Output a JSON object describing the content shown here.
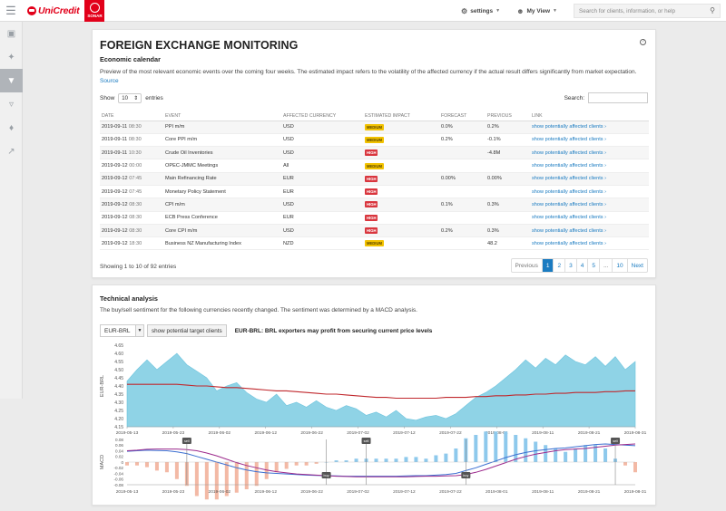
{
  "topbar": {
    "brand": "UniCredit",
    "product": "SONAR",
    "settings_label": "settings",
    "myview_label": "My View",
    "search_placeholder": "Search for clients, information, or help"
  },
  "sidebar": {
    "items": [
      {
        "icon": "monitor-icon"
      },
      {
        "icon": "pin-icon"
      },
      {
        "icon": "funnel-icon",
        "active": true
      },
      {
        "icon": "filter-icon"
      },
      {
        "icon": "bell-icon"
      },
      {
        "icon": "trend-icon"
      }
    ]
  },
  "fx_panel": {
    "title": "FOREIGN EXCHANGE MONITORING",
    "help": "?",
    "subtitle": "Economic calendar",
    "description": "Preview of the most relevant economic events over the coming four weeks. The estimated impact refers to the volatility of the affected currency if the actual result differs significantly from market expectation.",
    "source_link": "Source",
    "show_label": "Show",
    "entries_value": "10",
    "entries_label": "entries",
    "search_label": "Search:",
    "columns": [
      "DATE",
      "EVENT",
      "AFFECTED CURRENCY",
      "ESTIMATED IMPACT",
      "FORECAST",
      "PREVIOUS",
      "LINK"
    ],
    "rows": [
      {
        "date": "2019-09-11",
        "time": "08:30",
        "event": "PPI m/m",
        "currency": "USD",
        "impact": "MEDIUM",
        "forecast": "0.0%",
        "previous": "0.2%",
        "link": "show potentially affected clients"
      },
      {
        "date": "2019-09-11",
        "time": "08:30",
        "event": "Core PPI m/m",
        "currency": "USD",
        "impact": "MEDIUM",
        "forecast": "0.2%",
        "previous": "-0.1%",
        "link": "show potentially affected clients"
      },
      {
        "date": "2019-09-11",
        "time": "10:30",
        "event": "Crude Oil Inventories",
        "currency": "USD",
        "impact": "HIGH",
        "forecast": "",
        "previous": "-4.8M",
        "link": "show potentially affected clients"
      },
      {
        "date": "2019-09-12",
        "time": "00:00",
        "event": "OPEC-JMMC Meetings",
        "currency": "All",
        "impact": "MEDIUM",
        "forecast": "",
        "previous": "",
        "link": "show potentially affected clients"
      },
      {
        "date": "2019-09-12",
        "time": "07:45",
        "event": "Main Refinancing Rate",
        "currency": "EUR",
        "impact": "HIGH",
        "forecast": "0.00%",
        "previous": "0.00%",
        "link": "show potentially affected clients"
      },
      {
        "date": "2019-09-12",
        "time": "07:45",
        "event": "Monetary Policy Statement",
        "currency": "EUR",
        "impact": "HIGH",
        "forecast": "",
        "previous": "",
        "link": "show potentially affected clients"
      },
      {
        "date": "2019-09-12",
        "time": "08:30",
        "event": "CPI m/m",
        "currency": "USD",
        "impact": "HIGH",
        "forecast": "0.1%",
        "previous": "0.3%",
        "link": "show potentially affected clients"
      },
      {
        "date": "2019-09-12",
        "time": "08:30",
        "event": "ECB Press Conference",
        "currency": "EUR",
        "impact": "HIGH",
        "forecast": "",
        "previous": "",
        "link": "show potentially affected clients"
      },
      {
        "date": "2019-09-12",
        "time": "08:30",
        "event": "Core CPI m/m",
        "currency": "USD",
        "impact": "HIGH",
        "forecast": "0.2%",
        "previous": "0.3%",
        "link": "show potentially affected clients"
      },
      {
        "date": "2019-09-12",
        "time": "18:30",
        "event": "Business NZ Manufacturing Index",
        "currency": "NZD",
        "impact": "MEDIUM",
        "forecast": "",
        "previous": "48.2",
        "link": "show potentially affected clients"
      }
    ],
    "info": "Showing 1 to 10 of 92 entries",
    "pagination": [
      "Previous",
      "1",
      "2",
      "3",
      "4",
      "5",
      "...",
      "10",
      "Next"
    ],
    "current_page": "1"
  },
  "tech_panel": {
    "title": "Technical analysis",
    "description": "The buy/sell sentiment for the following currencies recently changed. The sentiment was determined by a MACD analysis.",
    "pair_value": "EUR-BRL",
    "target_button": "show potential target clients",
    "message": "EUR-BRL: BRL exporters may profit from securing current price levels"
  },
  "colors": {
    "brand": "#e2001a",
    "link": "#1a7bc1",
    "area": "#8fd3e6",
    "sma": "#c0282d"
  },
  "chart_data": [
    {
      "type": "area",
      "ylabel": "EUR-BRL",
      "ylim": [
        4.15,
        4.65
      ],
      "yticks": [
        "4.15",
        "4.20",
        "4.25",
        "4.30",
        "4.35",
        "4.40",
        "4.45",
        "4.50",
        "4.55",
        "4.60",
        "4.65"
      ],
      "xticks": [
        "2019-05-13",
        "2019-05-23",
        "2019-06-02",
        "2019-06-12",
        "2019-06-22",
        "2019-07-02",
        "2019-07-12",
        "2019-07-22",
        "2019-08-01",
        "2019-08-11",
        "2019-08-21",
        "2019-08-31"
      ],
      "series": [
        {
          "values": [
            4.43,
            4.5,
            4.56,
            4.5,
            4.55,
            4.6,
            4.53,
            4.49,
            4.45,
            4.37,
            4.4,
            4.42,
            4.36,
            4.32,
            4.3,
            4.35,
            4.28,
            4.3,
            4.27,
            4.31,
            4.27,
            4.25,
            4.28,
            4.26,
            4.22,
            4.24,
            4.21,
            4.25,
            4.2,
            4.19,
            4.21,
            4.22,
            4.2,
            4.23,
            4.28,
            4.33,
            4.36,
            4.4,
            4.45,
            4.5,
            4.56,
            4.51,
            4.57,
            4.53,
            4.59,
            4.55,
            4.53,
            4.58,
            4.52,
            4.58,
            4.5,
            4.55
          ]
        },
        {
          "values": [
            4.41,
            4.41,
            4.41,
            4.41,
            4.41,
            4.41,
            4.405,
            4.4,
            4.4,
            4.395,
            4.39,
            4.39,
            4.385,
            4.38,
            4.375,
            4.37,
            4.37,
            4.365,
            4.36,
            4.355,
            4.35,
            4.35,
            4.345,
            4.34,
            4.335,
            4.33,
            4.33,
            4.325,
            4.325,
            4.325,
            4.325,
            4.325,
            4.33,
            4.33,
            4.33,
            4.335,
            4.335,
            4.34,
            4.34,
            4.345,
            4.345,
            4.35,
            4.35,
            4.355,
            4.355,
            4.36,
            4.36,
            4.36,
            4.365,
            4.365,
            4.37,
            4.37
          ]
        }
      ]
    },
    {
      "type": "line",
      "ylabel": "MACD",
      "ylim": [
        -0.08,
        0.08
      ],
      "yticks": [
        "-0.08",
        "-0.06",
        "-0.04",
        "-0.02",
        "0",
        "0.02",
        "0.04",
        "0.06",
        "0.08"
      ],
      "xticks": [
        "2019-05-13",
        "2019-05-23",
        "2019-06-02",
        "2019-06-12",
        "2019-06-22",
        "2019-07-02",
        "2019-07-12",
        "2019-07-22",
        "2019-08-01",
        "2019-08-11",
        "2019-08-21",
        "2019-08-31"
      ],
      "series": [
        {
          "values": [
            0.038,
            0.04,
            0.042,
            0.041,
            0.04,
            0.036,
            0.03,
            0.02,
            0.01,
            0.0,
            -0.01,
            -0.02,
            -0.028,
            -0.034,
            -0.038,
            -0.04,
            -0.042,
            -0.044,
            -0.046,
            -0.047,
            -0.048,
            -0.049,
            -0.05,
            -0.05,
            -0.05,
            -0.05,
            -0.05,
            -0.05,
            -0.049,
            -0.048,
            -0.048,
            -0.046,
            -0.044,
            -0.04,
            -0.03,
            -0.02,
            -0.008,
            0.004,
            0.016,
            0.026,
            0.034,
            0.04,
            0.044,
            0.048,
            0.05,
            0.054,
            0.058,
            0.062,
            0.064,
            0.062,
            0.06,
            0.058
          ]
        },
        {
          "values": [
            0.04,
            0.042,
            0.045,
            0.046,
            0.046,
            0.046,
            0.044,
            0.04,
            0.032,
            0.022,
            0.01,
            -0.002,
            -0.012,
            -0.02,
            -0.028,
            -0.034,
            -0.038,
            -0.042,
            -0.044,
            -0.046,
            -0.048,
            -0.05,
            -0.051,
            -0.052,
            -0.052,
            -0.052,
            -0.052,
            -0.052,
            -0.052,
            -0.051,
            -0.05,
            -0.05,
            -0.049,
            -0.048,
            -0.044,
            -0.036,
            -0.026,
            -0.014,
            -0.002,
            0.01,
            0.02,
            0.028,
            0.034,
            0.04,
            0.044,
            0.046,
            0.048,
            0.052,
            0.056,
            0.06,
            0.062,
            0.064
          ]
        }
      ],
      "signals": [
        {
          "label": "sell",
          "x_index": 6
        },
        {
          "label": "buy",
          "x_index": 20
        },
        {
          "label": "sell",
          "x_index": 24
        },
        {
          "label": "buy",
          "x_index": 34
        },
        {
          "label": "sell",
          "x_index": 49
        }
      ]
    }
  ]
}
